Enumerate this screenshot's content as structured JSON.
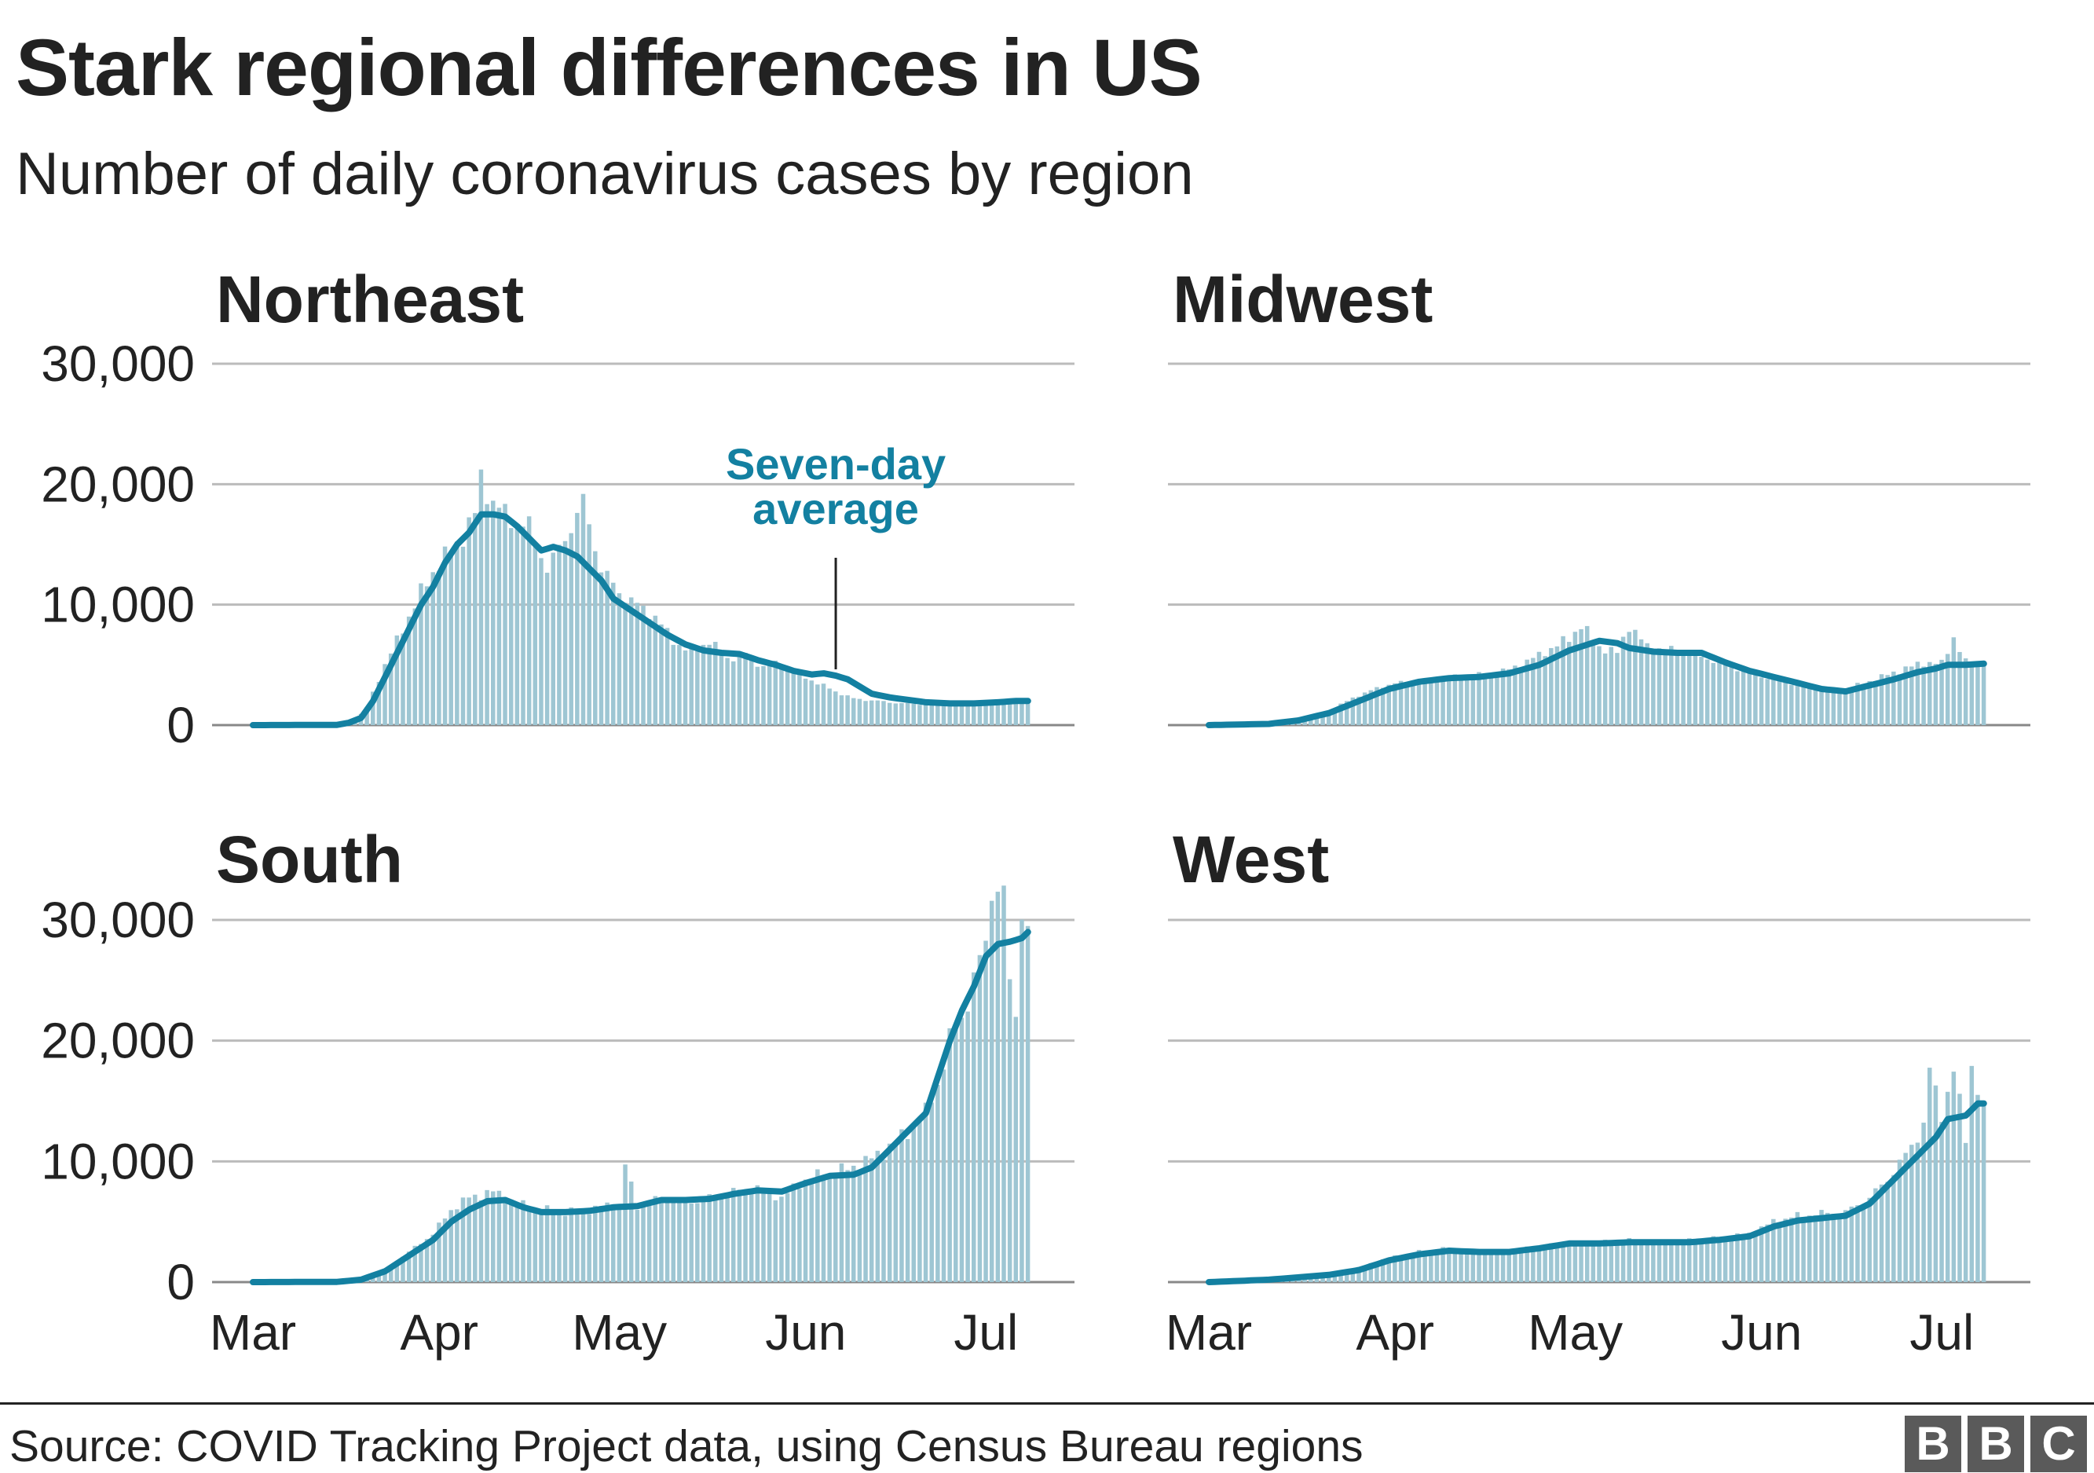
{
  "title": "Stark regional differences in US",
  "subtitle": "Number of daily coronavirus cases by region",
  "annotation": {
    "line1": "Seven-day",
    "line2": "average",
    "color": "#1380A1"
  },
  "source": "Source: COVID Tracking Project data, using Census Bureau regions",
  "logo": {
    "letters": [
      "B",
      "B",
      "C"
    ]
  },
  "colors": {
    "line": "#1380A1",
    "bars": "#9EC6D3",
    "grid": "#BBBBBB",
    "baseline": "#888888",
    "text": "#222222"
  },
  "chart_data": [
    {
      "type": "bar",
      "title": "Northeast",
      "x_ticks": [
        "Mar",
        "Apr",
        "May",
        "Jun",
        "Jul"
      ],
      "x_tick_day": [
        0,
        31,
        61,
        92,
        122
      ],
      "y_ticks": [
        "0",
        "10,000",
        "20,000",
        "30,000"
      ],
      "ylim": [
        0,
        30000
      ],
      "show_x_labels": false,
      "show_y_labels": true,
      "grid": true,
      "daily_cases_keypoints": [
        [
          0,
          0
        ],
        [
          14,
          50
        ],
        [
          17,
          300
        ],
        [
          19,
          1500
        ],
        [
          22,
          5000
        ],
        [
          25,
          8000
        ],
        [
          28,
          11000
        ],
        [
          31,
          13500
        ],
        [
          34,
          15000
        ],
        [
          37,
          17500
        ],
        [
          38,
          20500
        ],
        [
          40,
          18500
        ],
        [
          43,
          17000
        ],
        [
          46,
          16500
        ],
        [
          49,
          13000
        ],
        [
          52,
          15500
        ],
        [
          55,
          18500
        ],
        [
          58,
          13000
        ],
        [
          61,
          11000
        ],
        [
          64,
          10000
        ],
        [
          67,
          9000
        ],
        [
          70,
          7000
        ],
        [
          73,
          6000
        ],
        [
          76,
          7000
        ],
        [
          79,
          5500
        ],
        [
          82,
          6000
        ],
        [
          85,
          4800
        ],
        [
          88,
          5200
        ],
        [
          91,
          4200
        ],
        [
          94,
          3500
        ],
        [
          97,
          2800
        ],
        [
          100,
          2200
        ],
        [
          104,
          2000
        ],
        [
          108,
          1800
        ],
        [
          115,
          1700
        ],
        [
          122,
          1800
        ],
        [
          128,
          2000
        ],
        [
          129,
          1900
        ]
      ],
      "average_keypoints": [
        [
          0,
          0
        ],
        [
          14,
          20
        ],
        [
          16,
          200
        ],
        [
          18,
          600
        ],
        [
          20,
          2000
        ],
        [
          22,
          4000
        ],
        [
          24,
          6000
        ],
        [
          26,
          8000
        ],
        [
          28,
          10000
        ],
        [
          30,
          11500
        ],
        [
          32,
          13500
        ],
        [
          34,
          15000
        ],
        [
          36,
          16000
        ],
        [
          38,
          17500
        ],
        [
          40,
          17500
        ],
        [
          42,
          17300
        ],
        [
          44,
          16500
        ],
        [
          46,
          15500
        ],
        [
          48,
          14500
        ],
        [
          50,
          14800
        ],
        [
          52,
          14500
        ],
        [
          54,
          14000
        ],
        [
          56,
          13000
        ],
        [
          58,
          12000
        ],
        [
          60,
          10500
        ],
        [
          63,
          9500
        ],
        [
          66,
          8500
        ],
        [
          69,
          7500
        ],
        [
          72,
          6700
        ],
        [
          75,
          6200
        ],
        [
          78,
          6000
        ],
        [
          81,
          5900
        ],
        [
          84,
          5400
        ],
        [
          87,
          5000
        ],
        [
          90,
          4500
        ],
        [
          93,
          4200
        ],
        [
          95,
          4300
        ],
        [
          97,
          4100
        ],
        [
          99,
          3800
        ],
        [
          101,
          3200
        ],
        [
          103,
          2600
        ],
        [
          106,
          2300
        ],
        [
          109,
          2100
        ],
        [
          112,
          1900
        ],
        [
          116,
          1800
        ],
        [
          120,
          1800
        ],
        [
          124,
          1900
        ],
        [
          127,
          2000
        ],
        [
          129,
          2000
        ]
      ]
    },
    {
      "type": "bar",
      "title": "Midwest",
      "x_ticks": [
        "Mar",
        "Apr",
        "May",
        "Jun",
        "Jul"
      ],
      "x_tick_day": [
        0,
        31,
        61,
        92,
        122
      ],
      "y_ticks": [
        "0",
        "10,000",
        "20,000",
        "30,000"
      ],
      "ylim": [
        0,
        30000
      ],
      "show_x_labels": false,
      "show_y_labels": false,
      "grid": true,
      "daily_cases_keypoints": [
        [
          0,
          0
        ],
        [
          10,
          100
        ],
        [
          15,
          500
        ],
        [
          20,
          1200
        ],
        [
          25,
          2500
        ],
        [
          30,
          3400
        ],
        [
          35,
          3700
        ],
        [
          40,
          4000
        ],
        [
          45,
          4200
        ],
        [
          50,
          4600
        ],
        [
          55,
          5800
        ],
        [
          60,
          7200
        ],
        [
          62,
          8300
        ],
        [
          65,
          6500
        ],
        [
          68,
          6000
        ],
        [
          70,
          8300
        ],
        [
          73,
          6500
        ],
        [
          76,
          6300
        ],
        [
          80,
          6000
        ],
        [
          85,
          5200
        ],
        [
          90,
          4300
        ],
        [
          95,
          3700
        ],
        [
          100,
          3200
        ],
        [
          104,
          2800
        ],
        [
          108,
          3300
        ],
        [
          112,
          4000
        ],
        [
          116,
          4700
        ],
        [
          119,
          5200
        ],
        [
          122,
          5100
        ],
        [
          124,
          7300
        ],
        [
          126,
          5200
        ],
        [
          129,
          5400
        ]
      ],
      "average_keypoints": [
        [
          0,
          0
        ],
        [
          10,
          100
        ],
        [
          15,
          400
        ],
        [
          20,
          1000
        ],
        [
          25,
          2000
        ],
        [
          30,
          3000
        ],
        [
          35,
          3600
        ],
        [
          40,
          3900
        ],
        [
          45,
          4000
        ],
        [
          50,
          4300
        ],
        [
          55,
          5000
        ],
        [
          60,
          6200
        ],
        [
          65,
          7000
        ],
        [
          68,
          6800
        ],
        [
          70,
          6400
        ],
        [
          74,
          6100
        ],
        [
          78,
          6000
        ],
        [
          82,
          6000
        ],
        [
          86,
          5200
        ],
        [
          90,
          4500
        ],
        [
          94,
          4000
        ],
        [
          98,
          3500
        ],
        [
          102,
          3000
        ],
        [
          106,
          2800
        ],
        [
          110,
          3300
        ],
        [
          114,
          3800
        ],
        [
          118,
          4400
        ],
        [
          121,
          4700
        ],
        [
          123,
          5000
        ],
        [
          126,
          5000
        ],
        [
          129,
          5100
        ]
      ]
    },
    {
      "type": "bar",
      "title": "South",
      "x_ticks": [
        "Mar",
        "Apr",
        "May",
        "Jun",
        "Jul"
      ],
      "x_tick_day": [
        0,
        31,
        61,
        92,
        122
      ],
      "y_ticks": [
        "0",
        "10,000",
        "20,000",
        "30,000"
      ],
      "ylim": [
        0,
        30000
      ],
      "show_x_labels": true,
      "show_y_labels": true,
      "grid": true,
      "daily_cases_keypoints": [
        [
          0,
          0
        ],
        [
          14,
          50
        ],
        [
          18,
          300
        ],
        [
          22,
          1000
        ],
        [
          26,
          2500
        ],
        [
          30,
          4000
        ],
        [
          33,
          6000
        ],
        [
          36,
          7000
        ],
        [
          40,
          7500
        ],
        [
          44,
          6500
        ],
        [
          48,
          6000
        ],
        [
          52,
          5800
        ],
        [
          56,
          6000
        ],
        [
          60,
          6500
        ],
        [
          61,
          6000
        ],
        [
          62,
          9700
        ],
        [
          64,
          6200
        ],
        [
          68,
          7000
        ],
        [
          72,
          6500
        ],
        [
          76,
          7000
        ],
        [
          80,
          7500
        ],
        [
          84,
          7800
        ],
        [
          88,
          7000
        ],
        [
          92,
          8500
        ],
        [
          96,
          9000
        ],
        [
          100,
          9500
        ],
        [
          104,
          10500
        ],
        [
          108,
          12000
        ],
        [
          112,
          14000
        ],
        [
          114,
          16500
        ],
        [
          116,
          20000
        ],
        [
          118,
          22000
        ],
        [
          120,
          25000
        ],
        [
          122,
          28000
        ],
        [
          123,
          33000
        ],
        [
          125,
          32000
        ],
        [
          126,
          24500
        ],
        [
          127,
          22500
        ],
        [
          128,
          31000
        ],
        [
          129,
          29000
        ]
      ],
      "average_keypoints": [
        [
          0,
          0
        ],
        [
          14,
          20
        ],
        [
          18,
          200
        ],
        [
          22,
          900
        ],
        [
          26,
          2200
        ],
        [
          30,
          3500
        ],
        [
          33,
          5000
        ],
        [
          36,
          6000
        ],
        [
          39,
          6700
        ],
        [
          42,
          6800
        ],
        [
          45,
          6200
        ],
        [
          48,
          5800
        ],
        [
          52,
          5800
        ],
        [
          56,
          5900
        ],
        [
          60,
          6200
        ],
        [
          64,
          6300
        ],
        [
          68,
          6800
        ],
        [
          72,
          6800
        ],
        [
          76,
          6900
        ],
        [
          80,
          7300
        ],
        [
          84,
          7600
        ],
        [
          88,
          7500
        ],
        [
          92,
          8200
        ],
        [
          96,
          8800
        ],
        [
          100,
          8900
        ],
        [
          103,
          9500
        ],
        [
          106,
          11000
        ],
        [
          109,
          12500
        ],
        [
          112,
          14000
        ],
        [
          114,
          17000
        ],
        [
          116,
          20000
        ],
        [
          118,
          22500
        ],
        [
          120,
          24500
        ],
        [
          122,
          27000
        ],
        [
          124,
          28000
        ],
        [
          126,
          28200
        ],
        [
          128,
          28500
        ],
        [
          129,
          29000
        ]
      ]
    },
    {
      "type": "bar",
      "title": "West",
      "x_ticks": [
        "Mar",
        "Apr",
        "May",
        "Jun",
        "Jul"
      ],
      "x_tick_day": [
        0,
        31,
        61,
        92,
        122
      ],
      "y_ticks": [
        "0",
        "10,000",
        "20,000",
        "30,000"
      ],
      "ylim": [
        0,
        30000
      ],
      "show_x_labels": true,
      "show_y_labels": false,
      "grid": true,
      "daily_cases_keypoints": [
        [
          0,
          0
        ],
        [
          10,
          300
        ],
        [
          20,
          700
        ],
        [
          25,
          1200
        ],
        [
          30,
          2000
        ],
        [
          35,
          2500
        ],
        [
          40,
          2800
        ],
        [
          45,
          2500
        ],
        [
          50,
          2600
        ],
        [
          55,
          3000
        ],
        [
          60,
          3300
        ],
        [
          65,
          3300
        ],
        [
          70,
          3500
        ],
        [
          75,
          3300
        ],
        [
          80,
          3400
        ],
        [
          85,
          3600
        ],
        [
          90,
          4000
        ],
        [
          94,
          5000
        ],
        [
          98,
          5500
        ],
        [
          102,
          5700
        ],
        [
          106,
          5800
        ],
        [
          110,
          7000
        ],
        [
          113,
          8500
        ],
        [
          116,
          10500
        ],
        [
          119,
          13000
        ],
        [
          120,
          17500
        ],
        [
          122,
          14000
        ],
        [
          124,
          17500
        ],
        [
          126,
          12000
        ],
        [
          127,
          18000
        ],
        [
          129,
          14000
        ]
      ],
      "average_keypoints": [
        [
          0,
          0
        ],
        [
          10,
          200
        ],
        [
          20,
          600
        ],
        [
          25,
          1000
        ],
        [
          30,
          1800
        ],
        [
          35,
          2300
        ],
        [
          40,
          2600
        ],
        [
          45,
          2500
        ],
        [
          50,
          2500
        ],
        [
          55,
          2800
        ],
        [
          60,
          3200
        ],
        [
          65,
          3200
        ],
        [
          70,
          3300
        ],
        [
          75,
          3300
        ],
        [
          80,
          3300
        ],
        [
          85,
          3500
        ],
        [
          90,
          3800
        ],
        [
          94,
          4600
        ],
        [
          98,
          5100
        ],
        [
          102,
          5300
        ],
        [
          106,
          5500
        ],
        [
          110,
          6500
        ],
        [
          113,
          8000
        ],
        [
          116,
          9500
        ],
        [
          119,
          11000
        ],
        [
          121,
          12000
        ],
        [
          123,
          13500
        ],
        [
          126,
          13800
        ],
        [
          128,
          14800
        ],
        [
          129,
          14800
        ]
      ]
    }
  ]
}
